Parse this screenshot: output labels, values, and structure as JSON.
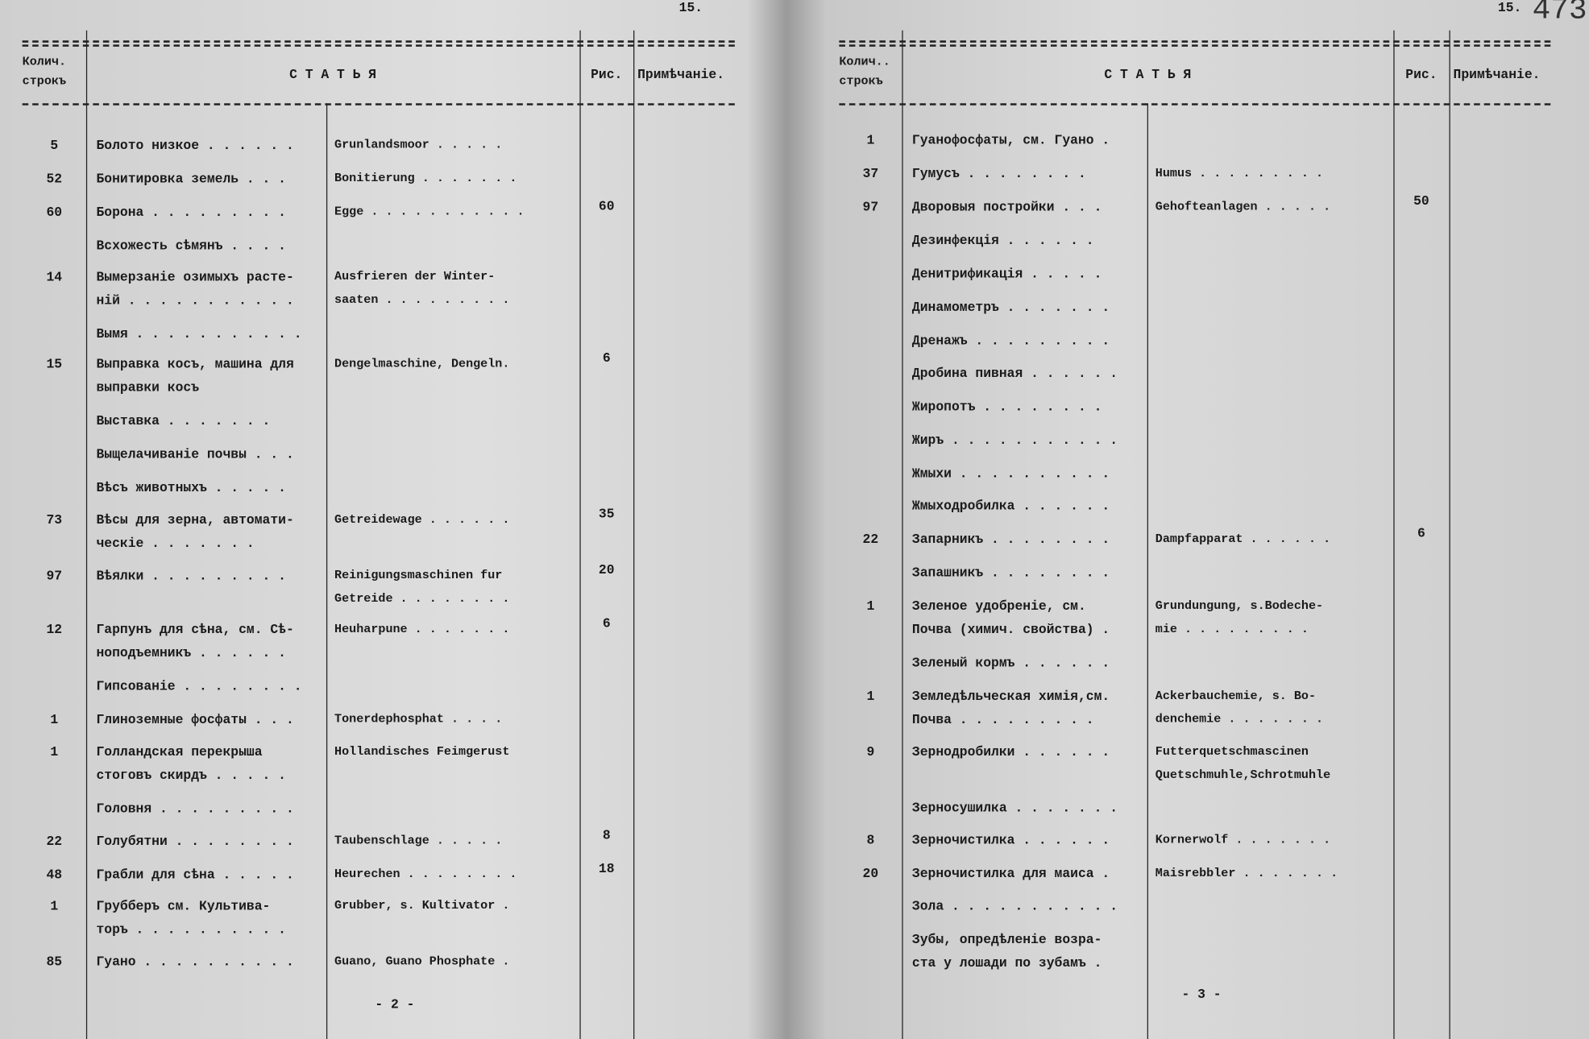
{
  "pages": [
    {
      "page_number": "15.",
      "headers": [
        "Колич.\nстрокъ",
        "С Т А Т Ь Я",
        "Рис.",
        "Примѣчаніе."
      ],
      "rows": [
        {
          "count": "5",
          "ru": "Болото низкое . . . . . .",
          "de": "Grunlandsmoor . . . . ."
        },
        {
          "count": "52",
          "ru": "Бонитировка земель . . .",
          "de": "Bonitierung . . . . . . ."
        },
        {
          "count": "60",
          "ru": "Борона . . . . . . . . .",
          "de": "Egge . . . . . . . . . . .",
          "fig": "60"
        },
        {
          "ru": "Всхожесть сѣмянъ . . . ."
        },
        {
          "count": "14",
          "ru": "Вымерзаніе озимыхъ расте-\nній . . . . . . . . . . .",
          "de": "Ausfrieren der Winter-\nsaaten . . . . . . . . ."
        },
        {
          "ru": "Вымя . . . . . . . . . . ."
        },
        {
          "count": "15",
          "ru": "Выправка косъ, машина для\nвыправки косъ",
          "de": "Dengelmaschine, Dengeln.",
          "fig": "6"
        },
        {
          "ru": "Выставка . . . . . . ."
        },
        {
          "ru": "Выщелачиваніе почвы . . ."
        },
        {
          "ru": "Вѣсъ животныхъ . . . . ."
        },
        {
          "count": "73",
          "ru": "Вѣсы для зерна, автомати-\nческіе . . . . . . .",
          "de": "Getreidewage . . . . . .",
          "fig": "35"
        },
        {
          "count": "97",
          "ru": "Вѣялки . . . . . . . . .",
          "de": "Reinigungsmaschinen fur\nGetreide . . . . . . . .",
          "fig": "20"
        },
        {
          "count": "12",
          "ru": "Гарпунъ для сѣна, см. Сѣ-\nноподъемникъ . . . . . .",
          "de": "Heuharpune . . . . . . .",
          "fig": "6"
        },
        {
          "ru": "Гипсованіе . . . . . . . ."
        },
        {
          "count": "1",
          "ru": "Глиноземные фосфаты . . .",
          "de": "Tonerdephosphat . . . ."
        },
        {
          "count": "1",
          "ru": "Голландская перекрыша\nстоговъ скирдъ . . . . .",
          "de": "Hollandisches Feimgerust"
        },
        {
          "ru": "Головня . . . . . . . . ."
        },
        {
          "count": "22",
          "ru": "Голубятни . . . . . . . .",
          "de": "Taubenschlage . . . . .",
          "fig": "8"
        },
        {
          "count": "48",
          "ru": "Грабли для сѣна . . . . .",
          "de": "Heurechen . . . . . . . .",
          "fig": "18"
        },
        {
          "count": "1",
          "ru": "Грубберъ см. Культива-\nторъ . . . . . . . . . .",
          "de": "Grubber, s. Kultivator ."
        },
        {
          "count": "85",
          "ru": "Гуано . . . . . . . . . .",
          "de": "Guano, Guano Phosphate ."
        }
      ],
      "footer": "- 2 -"
    },
    {
      "page_number": "15.",
      "folio": "473",
      "headers": [
        "Колич..\nстрокъ",
        "С Т А Т Ь Я",
        "Рис.",
        "Примѣчаніе."
      ],
      "rows": [
        {
          "count": "1",
          "ru": "Гуанофосфаты, см. Гуано ."
        },
        {
          "count": "37",
          "ru": "Гумусъ . . . . . . . .",
          "de": "Humus . . . . . . . . ."
        },
        {
          "count": "97",
          "ru": "Дворовыя постройки . . .",
          "de": "Gehofteanlagen . . . . .",
          "fig": "50"
        },
        {
          "ru": "Дезинфекція . . . . . ."
        },
        {
          "ru": "Денитрификація . . . . ."
        },
        {
          "ru": "Динамометръ . . . . . . ."
        },
        {
          "ru": "Дренажъ . . . . . . . . ."
        },
        {
          "ru": "Дробина пивная . . . . . ."
        },
        {
          "ru": "Жиропотъ . . . . . . . ."
        },
        {
          "ru": "Жиръ . . . . . . . . . . ."
        },
        {
          "ru": "Жмыхи . . . . . . . . . ."
        },
        {
          "ru": "Жмыходробилка . . . . . ."
        },
        {
          "count": "22",
          "ru": "Запарникъ . . . . . . . .",
          "de": "Dampfapparat . . . . . .",
          "fig": "6"
        },
        {
          "ru": "Запашникъ . . . . . . . ."
        },
        {
          "count": "1",
          "ru": "Зеленое удобреніе, см.\nПочва (химич. свойства) .",
          "de": "Grundungung, s.Bodeche-\nmie . . . . . . . . ."
        },
        {
          "ru": "Зеленый кормъ . . . . . ."
        },
        {
          "count": "1",
          "ru": "Земледѣльческая химія,см.\nПочва . . . . . . . . .",
          "de": "Ackerbauchemie, s. Bo-\ndenchemie . . . . . . ."
        },
        {
          "count": "9",
          "ru": "Зернодробилки . . . . . .",
          "de": "Futterquetschmascinen\nQuetschmuhle,Schrotmuhle"
        },
        {
          "ru": "Зерносушилка . . . . . . ."
        },
        {
          "count": "8",
          "ru": "Зерночистилка . . . . . .",
          "de": "Kornerwolf . . . . . . ."
        },
        {
          "count": "20",
          "ru": "Зерночистилка для маиса .",
          "de": "Maisrebbler . . . . . . ."
        },
        {
          "ru": "Зола . . . . . . . . . . ."
        },
        {
          "ru": "Зубы, опредѣленіе возра-\nста у лошади по зубамъ ."
        }
      ],
      "footer": "- 3 -"
    }
  ]
}
